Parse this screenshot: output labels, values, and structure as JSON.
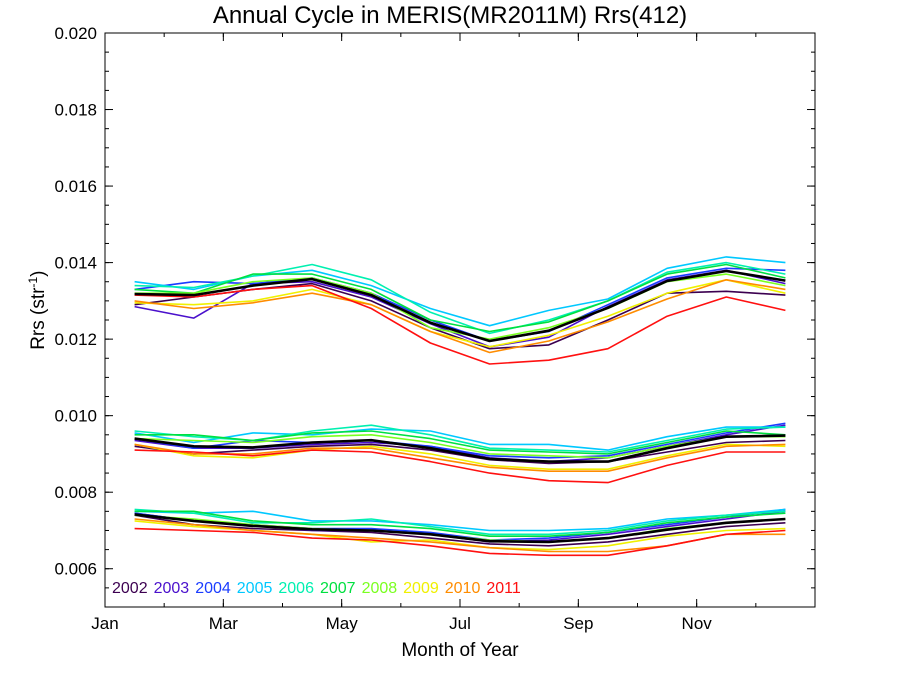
{
  "chart_data": {
    "type": "line",
    "title": "Annual Cycle in MERIS(MR2011M) Rrs(412)",
    "xlabel": "Month of Year",
    "ylabel_main": "Rrs (str",
    "ylabel_sup": "-1",
    "ylabel_end": ")",
    "xlim": [
      1,
      13
    ],
    "ylim": [
      0.005,
      0.02
    ],
    "x_ticks": [
      {
        "x": 1,
        "label": "Jan"
      },
      {
        "x": 3,
        "label": "Mar"
      },
      {
        "x": 5,
        "label": "May"
      },
      {
        "x": 7,
        "label": "Jul"
      },
      {
        "x": 9,
        "label": "Sep"
      },
      {
        "x": 11,
        "label": "Nov"
      }
    ],
    "y_ticks": [
      0.006,
      0.008,
      0.01,
      0.012,
      0.014,
      0.016,
      0.018,
      0.02
    ],
    "y_tick_labels": [
      "0.006",
      "0.008",
      "0.010",
      "0.012",
      "0.014",
      "0.016",
      "0.018",
      "0.020"
    ],
    "x": [
      1.5,
      2.5,
      3.5,
      4.5,
      5.5,
      6.5,
      7.5,
      8.5,
      9.5,
      10.5,
      11.5,
      12.5
    ],
    "legend_placement": "bottom-left",
    "groups": [
      {
        "series": [
          {
            "name": "2002",
            "color": "#3c0050",
            "values": [
              0.0129,
              0.0131,
              0.0133,
              0.01345,
              0.013,
              0.0123,
              0.01175,
              0.01185,
              0.0125,
              0.0132,
              0.01325,
              0.01315
            ]
          },
          {
            "name": "2003",
            "color": "#4a10cc",
            "values": [
              0.01285,
              0.01255,
              0.01345,
              0.0135,
              0.0131,
              0.0124,
              0.0118,
              0.01205,
              0.01285,
              0.01355,
              0.0138,
              0.01345
            ]
          },
          {
            "name": "2004",
            "color": "#1a3cff",
            "values": [
              0.0133,
              0.0135,
              0.01345,
              0.0136,
              0.0132,
              0.0125,
              0.01195,
              0.0122,
              0.0129,
              0.0136,
              0.01385,
              0.0138
            ]
          },
          {
            "name": "2005",
            "color": "#00c8ff",
            "values": [
              0.0135,
              0.0133,
              0.01365,
              0.0138,
              0.0134,
              0.0128,
              0.01235,
              0.01275,
              0.01305,
              0.01385,
              0.01415,
              0.014
            ]
          },
          {
            "name": "2006",
            "color": "#00f0b0",
            "values": [
              0.0134,
              0.01335,
              0.01365,
              0.01395,
              0.01355,
              0.0127,
              0.01215,
              0.0125,
              0.013,
              0.01375,
              0.014,
              0.0137
            ]
          },
          {
            "name": "2007",
            "color": "#00e040",
            "values": [
              0.0133,
              0.0132,
              0.0137,
              0.0137,
              0.0133,
              0.0125,
              0.0122,
              0.01245,
              0.013,
              0.0137,
              0.01395,
              0.0136
            ]
          },
          {
            "name": "2008",
            "color": "#7aff20",
            "values": [
              0.0132,
              0.0132,
              0.0135,
              0.0136,
              0.0132,
              0.0123,
              0.012,
              0.0123,
              0.0128,
              0.0135,
              0.0137,
              0.0134
            ]
          },
          {
            "name": "2009",
            "color": "#f0f000",
            "values": [
              0.01295,
              0.0129,
              0.013,
              0.0133,
              0.0129,
              0.0122,
              0.0118,
              0.0121,
              0.0126,
              0.0132,
              0.01355,
              0.0132
            ]
          },
          {
            "name": "2010",
            "color": "#ff8c00",
            "values": [
              0.013,
              0.0128,
              0.01295,
              0.0132,
              0.0129,
              0.0122,
              0.01165,
              0.01195,
              0.01245,
              0.01305,
              0.01355,
              0.0133
            ]
          },
          {
            "name": "2011",
            "color": "#ff1010",
            "values": [
              0.01315,
              0.0131,
              0.0133,
              0.0134,
              0.0128,
              0.0119,
              0.01135,
              0.01145,
              0.01175,
              0.0126,
              0.0131,
              0.01275
            ]
          },
          {
            "name": "",
            "color": "#000000",
            "mean": true,
            "values": [
              0.01318,
              0.01315,
              0.0134,
              0.01357,
              0.01315,
              0.01243,
              0.01195,
              0.01222,
              0.01282,
              0.01352,
              0.01378,
              0.01353
            ]
          }
        ]
      },
      {
        "series": [
          {
            "name": "2002",
            "color": "#3c0050",
            "values": [
              0.0092,
              0.009,
              0.0091,
              0.0092,
              0.00925,
              0.0091,
              0.00885,
              0.00875,
              0.0088,
              0.00905,
              0.0093,
              0.00935
            ]
          },
          {
            "name": "2003",
            "color": "#4a10cc",
            "values": [
              0.00935,
              0.00915,
              0.00915,
              0.00925,
              0.0093,
              0.0092,
              0.0089,
              0.0088,
              0.0089,
              0.0092,
              0.0095,
              0.00975
            ]
          },
          {
            "name": "2004",
            "color": "#1a3cff",
            "values": [
              0.0094,
              0.00915,
              0.00935,
              0.0093,
              0.00935,
              0.0092,
              0.00895,
              0.0089,
              0.00895,
              0.00925,
              0.00955,
              0.0098
            ]
          },
          {
            "name": "2005",
            "color": "#00c8ff",
            "values": [
              0.00955,
              0.0093,
              0.00955,
              0.0095,
              0.00965,
              0.0096,
              0.00925,
              0.00925,
              0.0091,
              0.00945,
              0.0097,
              0.0097
            ]
          },
          {
            "name": "2006",
            "color": "#00f0b0",
            "values": [
              0.0096,
              0.00945,
              0.00935,
              0.0096,
              0.00975,
              0.0095,
              0.00915,
              0.0091,
              0.00905,
              0.00935,
              0.00965,
              0.0097
            ]
          },
          {
            "name": "2007",
            "color": "#00e040",
            "values": [
              0.0095,
              0.0095,
              0.00935,
              0.00955,
              0.0096,
              0.0094,
              0.0091,
              0.00905,
              0.009,
              0.0093,
              0.0096,
              0.0095
            ]
          },
          {
            "name": "2008",
            "color": "#7aff20",
            "values": [
              0.0094,
              0.00935,
              0.0093,
              0.00945,
              0.0095,
              0.0093,
              0.009,
              0.00895,
              0.0089,
              0.0092,
              0.00945,
              0.00945
            ]
          },
          {
            "name": "2009",
            "color": "#f0f000",
            "values": [
              0.00925,
              0.00895,
              0.0089,
              0.0091,
              0.0092,
              0.009,
              0.0087,
              0.0086,
              0.0086,
              0.00895,
              0.00925,
              0.0092
            ]
          },
          {
            "name": "2010",
            "color": "#ff8c00",
            "values": [
              0.00925,
              0.009,
              0.009,
              0.00915,
              0.00915,
              0.0089,
              0.00865,
              0.00855,
              0.00855,
              0.0089,
              0.0092,
              0.00925
            ]
          },
          {
            "name": "2011",
            "color": "#ff1010",
            "values": [
              0.0091,
              0.00905,
              0.00895,
              0.0091,
              0.00905,
              0.0088,
              0.0085,
              0.0083,
              0.00825,
              0.0087,
              0.00905,
              0.00905
            ]
          },
          {
            "name": "",
            "color": "#000000",
            "mean": true,
            "values": [
              0.0094,
              0.0092,
              0.00917,
              0.0093,
              0.00936,
              0.00915,
              0.00887,
              0.0088,
              0.0088,
              0.00915,
              0.00945,
              0.00948
            ]
          }
        ]
      },
      {
        "series": [
          {
            "name": "2002",
            "color": "#3c0050",
            "values": [
              0.0074,
              0.00715,
              0.00705,
              0.007,
              0.00695,
              0.0068,
              0.00665,
              0.0066,
              0.0067,
              0.0069,
              0.0071,
              0.0072
            ]
          },
          {
            "name": "2003",
            "color": "#4a10cc",
            "values": [
              0.00745,
              0.00725,
              0.00715,
              0.007,
              0.007,
              0.0069,
              0.0067,
              0.00675,
              0.0069,
              0.0071,
              0.0073,
              0.0075
            ]
          },
          {
            "name": "2004",
            "color": "#1a3cff",
            "values": [
              0.00745,
              0.00725,
              0.00715,
              0.00705,
              0.00705,
              0.00695,
              0.00675,
              0.0068,
              0.00695,
              0.00715,
              0.00735,
              0.00755
            ]
          },
          {
            "name": "2005",
            "color": "#00c8ff",
            "values": [
              0.0075,
              0.00745,
              0.0075,
              0.00725,
              0.00725,
              0.00715,
              0.007,
              0.007,
              0.00705,
              0.0073,
              0.0074,
              0.00755
            ]
          },
          {
            "name": "2006",
            "color": "#00f0b0",
            "values": [
              0.00755,
              0.00745,
              0.0072,
              0.0072,
              0.0073,
              0.0071,
              0.0069,
              0.0069,
              0.007,
              0.00725,
              0.0074,
              0.0075
            ]
          },
          {
            "name": "2007",
            "color": "#00e040",
            "values": [
              0.0075,
              0.0075,
              0.00725,
              0.00715,
              0.00715,
              0.00705,
              0.00685,
              0.00685,
              0.00695,
              0.0072,
              0.00735,
              0.00745
            ]
          },
          {
            "name": "2008",
            "color": "#7aff20",
            "values": [
              0.0074,
              0.0073,
              0.00715,
              0.00705,
              0.007,
              0.0069,
              0.00675,
              0.0067,
              0.0068,
              0.00705,
              0.0072,
              0.0073
            ]
          },
          {
            "name": "2009",
            "color": "#f0f000",
            "values": [
              0.00725,
              0.0071,
              0.007,
              0.0069,
              0.0067,
              0.00675,
              0.00655,
              0.0065,
              0.0066,
              0.00685,
              0.007,
              0.00705
            ]
          },
          {
            "name": "2010",
            "color": "#ff8c00",
            "values": [
              0.0073,
              0.00715,
              0.007,
              0.0069,
              0.0068,
              0.0067,
              0.00655,
              0.00645,
              0.00645,
              0.0066,
              0.0069,
              0.0069
            ]
          },
          {
            "name": "2011",
            "color": "#ff1010",
            "values": [
              0.00705,
              0.007,
              0.00695,
              0.0068,
              0.00675,
              0.0066,
              0.0064,
              0.00635,
              0.00635,
              0.0066,
              0.0069,
              0.007
            ]
          },
          {
            "name": "",
            "color": "#000000",
            "mean": true,
            "values": [
              0.00742,
              0.00725,
              0.00712,
              0.00703,
              0.007,
              0.0069,
              0.00672,
              0.0067,
              0.0068,
              0.00702,
              0.0072,
              0.0073
            ]
          }
        ]
      }
    ]
  }
}
